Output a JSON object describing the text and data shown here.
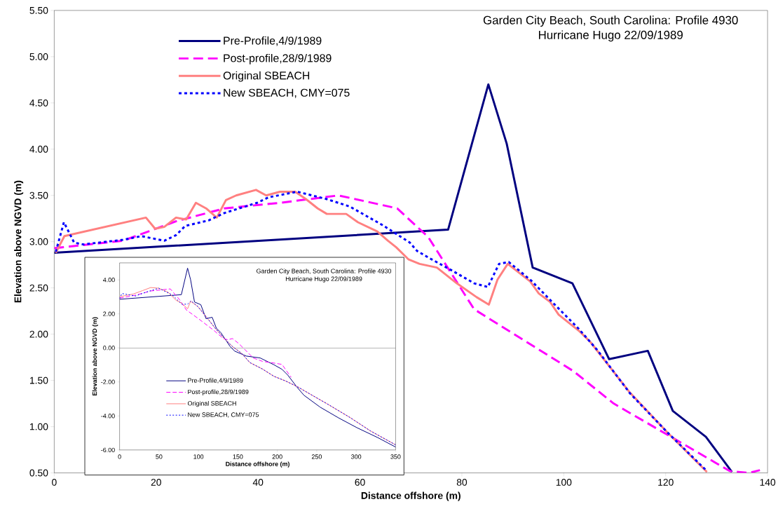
{
  "chart_data": [
    {
      "type": "line",
      "title": "Garden City Beach, South Carolina: Profile 4930",
      "subtitle": "Hurricane Hugo 22/09/1989",
      "xlabel": "Distance offshore (m)",
      "ylabel": "Elevation above NGVD (m)",
      "xlim": [
        0,
        140
      ],
      "ylim": [
        0.5,
        5.5
      ],
      "xticks": [
        0,
        20,
        40,
        60,
        80,
        100,
        120,
        140
      ],
      "yticks": [
        {
          "value": 0.5,
          "label": "0.50"
        },
        {
          "value": 1.0,
          "label": "1.00"
        },
        {
          "value": 1.5,
          "label": "1.50"
        },
        {
          "value": 2.0,
          "label": "2.00"
        },
        {
          "value": 2.5,
          "label": "2.50"
        },
        {
          "value": 3.0,
          "label": "3.00"
        },
        {
          "value": 3.5,
          "label": "3.50"
        },
        {
          "value": 4.0,
          "label": "4.00"
        },
        {
          "value": 4.5,
          "label": "4.50"
        },
        {
          "value": 5.0,
          "label": "5.00"
        },
        {
          "value": 5.5,
          "label": "5.50"
        }
      ],
      "legend": "top left",
      "marker": "none",
      "series": [
        {
          "name": "Pre-Profile,4/9/1989",
          "color": "#000080",
          "line_style": "solid",
          "x": [
            0,
            77.3,
            85.2,
            88.8,
            93.9,
            101.7,
            108.9,
            116.5,
            121.4,
            127.9,
            133
          ],
          "values": [
            2.88,
            3.13,
            4.7,
            4.06,
            2.72,
            2.55,
            1.73,
            1.82,
            1.17,
            0.89,
            0.51
          ]
        },
        {
          "name": "Post-profile,28/9/1989",
          "color": "#ff00ff",
          "line_style": "dashed",
          "x": [
            0,
            13.5,
            23.9,
            33.4,
            44.3,
            55.8,
            67.3,
            73.4,
            82.4,
            101.9,
            109.8,
            132.6,
            136.3,
            138.5
          ],
          "values": [
            2.93,
            3.01,
            3.22,
            3.36,
            3.42,
            3.5,
            3.36,
            3.05,
            2.27,
            1.6,
            1.25,
            0.52,
            0.5,
            0.53
          ]
        },
        {
          "name": "Original SBEACH",
          "color": "#ff8080",
          "line_style": "solid",
          "x": [
            0.3,
            2.0,
            18.0,
            19.8,
            21.6,
            23.9,
            25.9,
            27.8,
            29.8,
            31.9,
            33.7,
            35.7,
            39.6,
            41.6,
            44.3,
            47.3,
            49.4,
            51.7,
            53.5,
            57.3,
            59.6,
            63.4,
            65.5,
            67.1,
            69.5,
            71.7,
            75.1,
            79.0,
            82.9,
            85.3,
            87.0,
            89.0,
            93.4,
            95.1,
            97.3,
            99.0,
            103.1,
            105.3,
            112.8,
            120.3,
            128.1
          ],
          "values": [
            2.88,
            3.06,
            3.26,
            3.14,
            3.16,
            3.26,
            3.24,
            3.42,
            3.36,
            3.26,
            3.45,
            3.5,
            3.56,
            3.5,
            3.54,
            3.54,
            3.46,
            3.36,
            3.3,
            3.3,
            3.21,
            3.11,
            3.01,
            2.94,
            2.81,
            2.76,
            2.72,
            2.55,
            2.4,
            2.32,
            2.59,
            2.76,
            2.57,
            2.44,
            2.35,
            2.21,
            2.03,
            1.91,
            1.38,
            0.94,
            0.51
          ]
        },
        {
          "name": "New SBEACH, CMY=075",
          "color": "#0000ff",
          "line_style": "dotted",
          "x": [
            0.3,
            1.9,
            3.9,
            5.7,
            13.5,
            17.1,
            21.6,
            23.9,
            25.7,
            30.3,
            33.4,
            39.8,
            42.1,
            47.7,
            53.5,
            58.0,
            64.4,
            69.8,
            71.2,
            73.7,
            78.0,
            82.4,
            85.1,
            87.3,
            89.2,
            93.6,
            97.5,
            102.9,
            106.7,
            113.0,
            120.3,
            128.1
          ],
          "values": [
            2.89,
            3.21,
            2.99,
            2.97,
            3.02,
            3.06,
            3.01,
            3.07,
            3.17,
            3.23,
            3.31,
            3.42,
            3.48,
            3.54,
            3.46,
            3.38,
            3.18,
            2.99,
            2.9,
            2.82,
            2.69,
            2.55,
            2.51,
            2.76,
            2.78,
            2.58,
            2.36,
            2.06,
            1.82,
            1.36,
            0.94,
            0.52
          ]
        }
      ]
    },
    {
      "type": "line",
      "title": "Garden City Beach, South Carolina: Profile 4930",
      "subtitle": "Hurricane Hugo 22/09/1989",
      "xlabel": "Distance offshore (m)",
      "ylabel": "Elevation above NGVD (m)",
      "xlim": [
        0,
        350
      ],
      "ylim": [
        -6,
        5
      ],
      "xticks": [
        0,
        50,
        100,
        150,
        200,
        250,
        300,
        350
      ],
      "yticks": [
        {
          "value": -6,
          "label": "-6.00"
        },
        {
          "value": -4,
          "label": "-4.00"
        },
        {
          "value": -2,
          "label": "-2.00"
        },
        {
          "value": 0,
          "label": "0.00"
        },
        {
          "value": 2,
          "label": "2.00"
        },
        {
          "value": 4,
          "label": "4.00"
        }
      ],
      "legend": "bottom left",
      "marker": "none",
      "series": [
        {
          "name": "Pre-Profile,4/9/1989",
          "color": "#000080",
          "line_style": "solid",
          "x": [
            0,
            78.3,
            86.2,
            90,
            95,
            103,
            109.6,
            117.4,
            122.7,
            128.5,
            140.2,
            146,
            160.7,
            178.2,
            195.7,
            206,
            213.3,
            225,
            233.7,
            254.2,
            277.5,
            300.9,
            327.2,
            350
          ],
          "values": [
            2.86,
            3.13,
            4.69,
            4.02,
            2.7,
            2.54,
            1.72,
            1.8,
            1.16,
            0.89,
            0.08,
            -0.19,
            -0.48,
            -0.59,
            -0.99,
            -1.26,
            -1.6,
            -2.31,
            -2.78,
            -3.48,
            -4.11,
            -4.69,
            -5.27,
            -5.83
          ]
        },
        {
          "name": "Post-profile,28/9/1989",
          "color": "#ff00ff",
          "line_style": "dashed",
          "x": [
            0,
            20,
            40,
            64.3,
            76,
            84.7,
            100.8,
            119.8,
            131.5,
            137.3,
            143.1,
            150.5,
            157.8,
            169.4,
            181.1,
            195.7,
            206,
            210.3,
            217.6
          ],
          "values": [
            2.93,
            3.1,
            3.35,
            3.47,
            2.84,
            2.23,
            1.69,
            1.02,
            0.55,
            0.48,
            0.55,
            0.28,
            -0.05,
            -0.59,
            -0.79,
            -0.89,
            -0.97,
            -1.26,
            -1.73
          ]
        },
        {
          "name": "Original SBEACH",
          "color": "#ff8080",
          "line_style": "solid",
          "x": [
            0,
            17.5,
            29.2,
            39.4,
            49.7,
            61.4,
            71.6,
            78.9,
            86.2,
            90,
            99.3,
            111,
            121.2,
            131.5,
            143.1,
            154.8,
            165.1,
            181.1,
            195.7,
            210.3,
            225,
            242.5,
            262.9,
            292.1,
            318.4,
            350
          ],
          "values": [
            3.01,
            3.17,
            3.37,
            3.55,
            3.51,
            3.28,
            2.8,
            2.63,
            2.3,
            2.74,
            2.43,
            1.76,
            1.16,
            0.62,
            0.08,
            -0.32,
            -0.86,
            -1.24,
            -1.67,
            -1.94,
            -2.27,
            -2.74,
            -3.28,
            -4.09,
            -4.89,
            -5.7
          ]
        },
        {
          "name": "New SBEACH, CMY=075",
          "color": "#0000ff",
          "line_style": "dotted",
          "x": [
            0,
            2.9,
            20,
            35,
            49.7,
            67.2,
            78.9,
            86.2,
            90.6,
            99.3,
            111,
            121.2,
            131.5,
            143.1,
            154.8,
            165.1,
            181.1,
            195.7,
            210.3,
            225,
            242.5,
            262.9,
            292.1,
            318.4,
            350
          ],
          "values": [
            2.9,
            3.2,
            3.05,
            3.3,
            3.51,
            3.1,
            2.57,
            2.57,
            2.77,
            2.43,
            1.76,
            1.16,
            0.62,
            0.08,
            -0.32,
            -0.86,
            -1.24,
            -1.67,
            -1.94,
            -2.27,
            -2.74,
            -3.28,
            -4.09,
            -4.89,
            -5.7
          ]
        }
      ]
    }
  ]
}
